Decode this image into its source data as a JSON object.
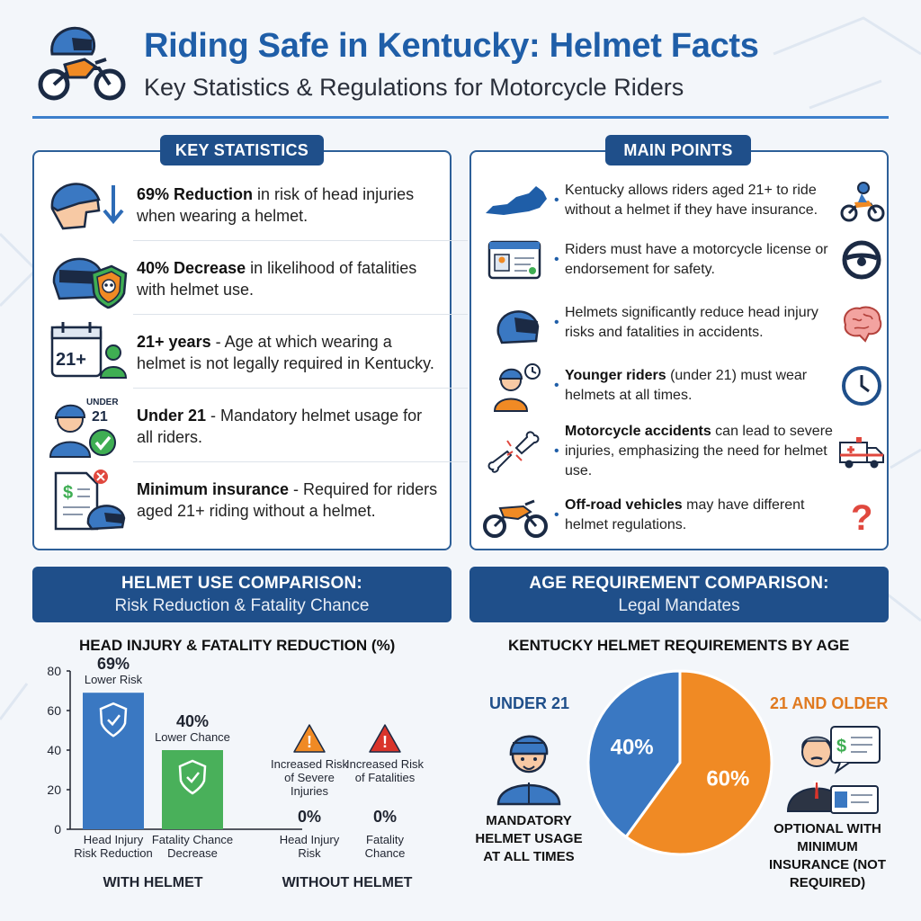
{
  "header": {
    "title": "Riding Safe in Kentucky: Helmet Facts",
    "subtitle": "Key Statistics & Regulations for Motorcycle Riders",
    "logo_icon": "motorcycle-helmet-icon"
  },
  "colors": {
    "primary": "#1f4f8a",
    "accent_blue": "#3c7fcc",
    "green": "#3fae53",
    "orange": "#f08a24",
    "red_warning": "#d9342b"
  },
  "key_statistics": {
    "label": "KEY STATISTICS",
    "items": [
      {
        "icon": "helmet-head-down-arrow-icon",
        "bold": "69% Reduction",
        "text": " in risk of head injuries when wearing a helmet."
      },
      {
        "icon": "helmet-shield-skull-icon",
        "bold": "40% Decrease",
        "text": " in likelihood of fatalities with helmet use."
      },
      {
        "icon": "calendar-21-plus-icon",
        "icon_text": "21+",
        "bold": "21+ years",
        "text": " - Age at which wearing a helmet is not legally required in Kentucky."
      },
      {
        "icon": "under-21-rider-check-icon",
        "icon_text_top": "UNDER",
        "icon_text_num": "21",
        "bold": "Under 21",
        "text": " - Mandatory helmet usage for all riders."
      },
      {
        "icon": "insurance-document-helmet-icon",
        "bold": "Minimum insurance",
        "text": " - Required for riders aged 21+ riding without a helmet."
      }
    ]
  },
  "main_points": {
    "label": "MAIN POINTS",
    "items": [
      {
        "left_icon": "kentucky-map-icon",
        "right_icon": "motorcyclist-icon",
        "bold": "",
        "text": "Kentucky allows riders aged 21+ to ride without a helmet if they have insurance."
      },
      {
        "left_icon": "license-card-icon",
        "right_icon": "steering-wheel-icon",
        "bold": "",
        "text": "Riders must have a motorcycle license or endorsement for safety."
      },
      {
        "left_icon": "helmet-icon",
        "right_icon": "brain-icon",
        "bold": "",
        "text": "Helmets significantly reduce head injury risks and fatalities in accidents."
      },
      {
        "left_icon": "young-rider-clock-icon",
        "right_icon": "clock-icon",
        "bold": "Younger riders",
        "text": " (under 21) must wear helmets at all times."
      },
      {
        "left_icon": "broken-bone-icon",
        "right_icon": "ambulance-icon",
        "bold": "Motorcycle accidents",
        "text": " can lead to severe injuries, emphasizing the need for helmet use."
      },
      {
        "left_icon": "dirt-bike-icon",
        "right_icon": "question-mark-icon",
        "bold": "Off-road vehicles",
        "text": " may have different helmet regulations."
      }
    ]
  },
  "helmet_comparison": {
    "banner_title": "HELMET USE COMPARISON:",
    "banner_sub": "Risk Reduction & Fatality Chance"
  },
  "age_comparison": {
    "banner_title": "AGE REQUIREMENT COMPARISON:",
    "banner_sub": "Legal Mandates"
  },
  "chart_data": [
    {
      "type": "bar",
      "title": "HEAD INJURY & FATALITY REDUCTION (%)",
      "ylim": [
        0,
        80
      ],
      "yticks": [
        0,
        20,
        40,
        60,
        80
      ],
      "groups": [
        {
          "label": "WITH HELMET",
          "bars": [
            {
              "category": "Head Injury Risk Reduction",
              "value": 69,
              "value_label": "69%",
              "note": "Lower Risk",
              "color": "#3a78c2",
              "icon": "shield-check-icon"
            },
            {
              "category": "Fatality Chance Decrease",
              "value": 40,
              "value_label": "40%",
              "note": "Lower Chance",
              "color": "#49b05a",
              "icon": "shield-check-icon"
            }
          ]
        },
        {
          "label": "WITHOUT HELMET",
          "bars": [
            {
              "category": "Head Injury Risk",
              "value": 0,
              "value_label": "0%",
              "note": "Increased Risk of Severe Injuries",
              "color": "#f08a24",
              "icon": "warning-triangle-icon"
            },
            {
              "category": "Fatality Chance",
              "value": 0,
              "value_label": "0%",
              "note": "Increased Risk of Fatalities",
              "color": "#d9342b",
              "icon": "warning-triangle-icon"
            }
          ]
        }
      ]
    },
    {
      "type": "pie",
      "title": "KENTUCKY HELMET REQUIREMENTS BY AGE",
      "slices": [
        {
          "label": "UNDER 21",
          "value": 40,
          "value_label": "40%",
          "color": "#3a78c2",
          "description": "MANDATORY HELMET USAGE AT ALL TIMES"
        },
        {
          "label": "21 AND OLDER",
          "value": 60,
          "value_label": "60%",
          "color": "#f08a24",
          "description": "OPTIONAL WITH MINIMUM INSURANCE (NOT REQUIRED)"
        }
      ]
    }
  ]
}
